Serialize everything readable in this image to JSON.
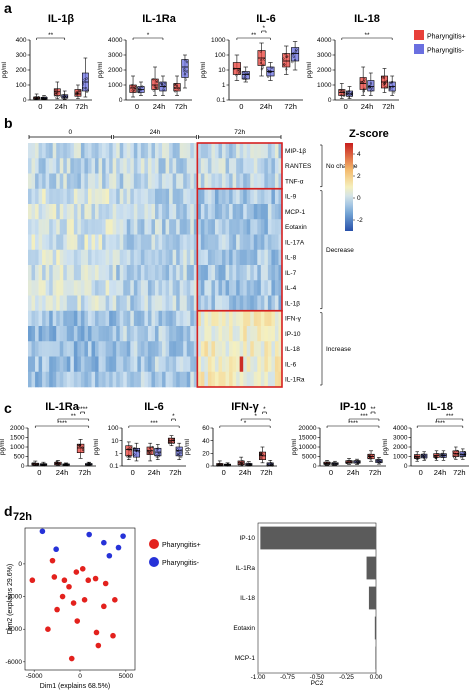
{
  "colors": {
    "pos": "#e8403a",
    "neg": "#6a6fe0",
    "pos_dot": "#e3211d",
    "neg_dot": "#2632d8",
    "highlight": "#d62020",
    "bar_pc": "#5b5b5b"
  },
  "legend": {
    "pos": "Pharyngitis+",
    "neg": "Pharyngitis-"
  },
  "panel_labels": {
    "a": "a",
    "b": "b",
    "c": "c",
    "d": "d"
  },
  "timepoints": [
    "0",
    "24h",
    "72h"
  ],
  "sig": {
    "one": "*",
    "two": "**",
    "three": "***",
    "four": "****"
  },
  "chart_data": [
    {
      "panel": "a",
      "type": "box",
      "title": "IL-1β",
      "ylabel": "pg/ml",
      "ylim": [
        0,
        400
      ],
      "yticks": [
        "0",
        "100",
        "200",
        "300",
        "400"
      ],
      "categories": [
        "0",
        "24h",
        "72h"
      ],
      "series": [
        {
          "name": "Pharyngitis+",
          "boxes": [
            [
              2,
              6,
              12,
              20,
              40
            ],
            [
              8,
              30,
              55,
              75,
              120
            ],
            [
              10,
              25,
              40,
              70,
              100
            ]
          ]
        },
        {
          "name": "Pharyngitis-",
          "boxes": [
            [
              2,
              5,
              10,
              18,
              30
            ],
            [
              5,
              12,
              20,
              35,
              60
            ],
            [
              20,
              60,
              120,
              180,
              280
            ]
          ]
        }
      ],
      "brackets": [
        {
          "from": 0,
          "to": 1,
          "label": "**"
        }
      ]
    },
    {
      "panel": "a",
      "type": "box",
      "title": "IL-1Ra",
      "ylabel": "pg/ml",
      "ylim": [
        0,
        4000
      ],
      "yticks": [
        "0",
        "1000",
        "2000",
        "3000",
        "4000"
      ],
      "categories": [
        "0",
        "24h",
        "72h"
      ],
      "series": [
        {
          "name": "Pharyngitis+",
          "boxes": [
            [
              200,
              500,
              800,
              1000,
              1600
            ],
            [
              300,
              700,
              1000,
              1400,
              2200
            ],
            [
              300,
              600,
              800,
              1100,
              1600
            ]
          ]
        },
        {
          "name": "Pharyngitis-",
          "boxes": [
            [
              300,
              500,
              700,
              900,
              1200
            ],
            [
              300,
              600,
              900,
              1200,
              1600
            ],
            [
              800,
              1500,
              2200,
              2700,
              3000
            ]
          ]
        }
      ],
      "brackets": [
        {
          "from": 0,
          "to": 1,
          "label": "*"
        }
      ]
    },
    {
      "panel": "a",
      "type": "box",
      "title": "IL-6",
      "ylabel": "pg/ml",
      "ylim": [
        -1,
        3
      ],
      "yticks": [
        "0.1",
        "1",
        "10",
        "100",
        "1000"
      ],
      "log": true,
      "categories": [
        "0",
        "24h",
        "72h"
      ],
      "series": [
        {
          "name": "Pharyngitis+",
          "boxes": [
            [
              0.3,
              0.7,
              1.1,
              1.5,
              2.0
            ],
            [
              0.6,
              1.3,
              1.8,
              2.3,
              2.8
            ],
            [
              0.7,
              1.2,
              1.6,
              2.1,
              2.6
            ]
          ]
        },
        {
          "name": "Pharyngitis-",
          "boxes": [
            [
              0.2,
              0.4,
              0.7,
              0.9,
              1.2
            ],
            [
              0.3,
              0.6,
              0.9,
              1.2,
              1.5
            ],
            [
              1.0,
              1.6,
              2.1,
              2.5,
              2.9
            ]
          ]
        }
      ],
      "brackets": [
        {
          "from": 0,
          "to": 1,
          "label": "**"
        },
        {
          "from": 1,
          "to": 1.5,
          "label": "*"
        }
      ]
    },
    {
      "panel": "a",
      "type": "box",
      "title": "IL-18",
      "ylabel": "pg/ml",
      "ylim": [
        0,
        4000
      ],
      "yticks": [
        "0",
        "1000",
        "2000",
        "3000",
        "4000"
      ],
      "categories": [
        "0",
        "24h",
        "72h"
      ],
      "series": [
        {
          "name": "Pharyngitis+",
          "boxes": [
            [
              100,
              300,
              500,
              700,
              1100
            ],
            [
              300,
              700,
              1100,
              1500,
              2200
            ],
            [
              500,
              800,
              1200,
              1600,
              2100
            ]
          ]
        },
        {
          "name": "Pharyngitis-",
          "boxes": [
            [
              100,
              250,
              400,
              600,
              900
            ],
            [
              300,
              600,
              900,
              1300,
              1800
            ],
            [
              300,
              600,
              900,
              1200,
              1600
            ]
          ]
        }
      ],
      "brackets": [
        {
          "from": 0,
          "to": 2,
          "label": "**"
        }
      ]
    },
    {
      "panel": "c",
      "type": "box",
      "title": "IL-1Ra",
      "ylabel": "pg/ml",
      "ylim": [
        0,
        2000
      ],
      "yticks": [
        "0",
        "500",
        "1000",
        "1500",
        "2000"
      ],
      "categories": [
        "0",
        "24h",
        "72h"
      ],
      "series": [
        {
          "name": "Pharyngitis+",
          "boxes": [
            [
              20,
              50,
              100,
              150,
              260
            ],
            [
              30,
              60,
              120,
              200,
              300
            ],
            [
              400,
              700,
              950,
              1150,
              1400
            ]
          ]
        },
        {
          "name": "Pharyngitis-",
          "boxes": [
            [
              20,
              40,
              80,
              120,
              200
            ],
            [
              20,
              40,
              70,
              110,
              160
            ],
            [
              20,
              50,
              90,
              130,
              200
            ]
          ]
        }
      ],
      "brackets": [
        {
          "from": 0,
          "to": 2,
          "label": "****"
        },
        {
          "from": 1,
          "to": 2,
          "label": "**"
        },
        {
          "from": 2,
          "to": 2.5,
          "label": "****"
        }
      ]
    },
    {
      "panel": "c",
      "type": "box",
      "title": "IL-6",
      "ylabel": "pg/ml",
      "ylim": [
        -1,
        2
      ],
      "yticks": [
        "0.1",
        "1",
        "10",
        "100"
      ],
      "log": true,
      "categories": [
        "0",
        "24h",
        "72h"
      ],
      "series": [
        {
          "name": "Pharyngitis+",
          "boxes": [
            [
              -0.5,
              -0.2,
              0.3,
              0.6,
              0.9
            ],
            [
              -0.6,
              -0.1,
              0.2,
              0.5,
              0.8
            ],
            [
              0.6,
              0.8,
              1.0,
              1.2,
              1.4
            ]
          ]
        },
        {
          "name": "Pharyngitis-",
          "boxes": [
            [
              -0.6,
              -0.3,
              0.2,
              0.4,
              0.8
            ],
            [
              -0.5,
              -0.2,
              0.1,
              0.4,
              0.7
            ],
            [
              -0.5,
              -0.2,
              0.2,
              0.5,
              0.8
            ]
          ]
        }
      ],
      "brackets": [
        {
          "from": 0,
          "to": 2,
          "label": "***"
        },
        {
          "from": 2,
          "to": 2.5,
          "label": "*"
        }
      ]
    },
    {
      "panel": "c",
      "type": "box",
      "title": "IFN-γ",
      "ylabel": "pg/ml",
      "ylim": [
        0,
        60
      ],
      "yticks": [
        "0",
        "20",
        "40",
        "60"
      ],
      "categories": [
        "0",
        "24h",
        "72h"
      ],
      "series": [
        {
          "name": "Pharyngitis+",
          "boxes": [
            [
              0,
              1,
              2,
              4,
              8
            ],
            [
              0,
              2,
              5,
              8,
              14
            ],
            [
              5,
              10,
              16,
              22,
              30
            ]
          ]
        },
        {
          "name": "Pharyngitis-",
          "boxes": [
            [
              0,
              1,
              2,
              3,
              5
            ],
            [
              0,
              1,
              2,
              4,
              7
            ],
            [
              0,
              1,
              3,
              5,
              9
            ]
          ]
        }
      ],
      "brackets": [
        {
          "from": 0,
          "to": 2,
          "label": "*"
        },
        {
          "from": 1,
          "to": 2,
          "label": "*"
        },
        {
          "from": 2,
          "to": 2.5,
          "label": "*"
        }
      ]
    },
    {
      "panel": "c",
      "type": "box",
      "title": "IP-10",
      "ylabel": "pg/ml",
      "ylim": [
        0,
        20000
      ],
      "yticks": [
        "0",
        "5000",
        "10000",
        "15000",
        "20000"
      ],
      "categories": [
        "0",
        "24h",
        "72h"
      ],
      "series": [
        {
          "name": "Pharyngitis+",
          "boxes": [
            [
              400,
              900,
              1400,
              2000,
              3000
            ],
            [
              800,
              1500,
              2000,
              2800,
              4000
            ],
            [
              2500,
              3800,
              5000,
              6200,
              8000
            ]
          ]
        },
        {
          "name": "Pharyngitis-",
          "boxes": [
            [
              400,
              800,
              1200,
              1700,
              2500
            ],
            [
              800,
              1500,
              2100,
              2800,
              3600
            ],
            [
              1000,
              1800,
              2600,
              3400,
              4500
            ]
          ]
        }
      ],
      "brackets": [
        {
          "from": 0,
          "to": 2,
          "label": "****"
        },
        {
          "from": 1,
          "to": 2,
          "label": "***"
        },
        {
          "from": 2,
          "to": 2.5,
          "label": "**"
        }
      ]
    },
    {
      "panel": "c",
      "type": "box",
      "title": "IL-18",
      "ylabel": "pg/ml",
      "ylim": [
        0,
        4000
      ],
      "yticks": [
        "0",
        "1000",
        "2000",
        "3000",
        "4000"
      ],
      "categories": [
        "0",
        "24h",
        "72h"
      ],
      "series": [
        {
          "name": "Pharyngitis+",
          "boxes": [
            [
              500,
              800,
              1000,
              1200,
              1500
            ],
            [
              600,
              900,
              1100,
              1300,
              1600
            ],
            [
              700,
              1000,
              1300,
              1600,
              2000
            ]
          ]
        },
        {
          "name": "Pharyngitis-",
          "boxes": [
            [
              600,
              850,
              1050,
              1250,
              1500
            ],
            [
              600,
              900,
              1100,
              1300,
              1600
            ],
            [
              700,
              1000,
              1200,
              1500,
              1800
            ]
          ]
        }
      ],
      "brackets": [
        {
          "from": 0,
          "to": 2,
          "label": "****"
        },
        {
          "from": 1,
          "to": 2,
          "label": "***"
        }
      ]
    },
    {
      "panel": "b",
      "type": "heatmap",
      "columns_per_group": 24,
      "groups": [
        "0",
        "24h",
        "72h"
      ],
      "rows": [
        "MIP-1β",
        "RANTES",
        "TNF-α",
        "IL-9",
        "MCP-1",
        "Eotaxin",
        "IL-17A",
        "IL-8",
        "IL-7",
        "IL-4",
        "IL-1β",
        "IFN-γ",
        "IP-10",
        "IL-18",
        "IL-6",
        "IL-1Ra"
      ],
      "row_groups": [
        {
          "label": "No change",
          "from": 0,
          "to": 2
        },
        {
          "label": "Decrease",
          "from": 3,
          "to": 10
        },
        {
          "label": "Increase",
          "from": 11,
          "to": 15
        }
      ],
      "colorbar": {
        "title": "Z-score",
        "ticks": [
          "4",
          "2",
          "0",
          "-2"
        ],
        "range": [
          -3,
          5
        ]
      }
    },
    {
      "panel": "d",
      "type": "scatter",
      "title": "72h",
      "xlabel": "Dim1 (explains 68.5%)",
      "ylabel": "Dim2 (explains 29.6%)",
      "xlim": [
        -6000,
        6000
      ],
      "ylim": [
        -6500,
        2200
      ],
      "xticks": [
        "-5000",
        "0",
        "5000"
      ],
      "yticks": [
        "-6000",
        "-4000",
        "-2000",
        "0"
      ],
      "series": [
        {
          "name": "Pharyngitis+",
          "points": [
            [
              -5200,
              -1000
            ],
            [
              -3000,
              200
            ],
            [
              -2800,
              -800
            ],
            [
              -1700,
              -1000
            ],
            [
              -1200,
              -1400
            ],
            [
              -400,
              -500
            ],
            [
              300,
              -300
            ],
            [
              900,
              -1000
            ],
            [
              1700,
              -900
            ],
            [
              2800,
              -1200
            ],
            [
              500,
              -2200
            ],
            [
              -700,
              -2400
            ],
            [
              -2500,
              -2800
            ],
            [
              -300,
              -3500
            ],
            [
              2600,
              -2600
            ],
            [
              3800,
              -2200
            ],
            [
              1800,
              -4200
            ],
            [
              -900,
              -5800
            ],
            [
              -3500,
              -4000
            ],
            [
              3600,
              -4400
            ],
            [
              2000,
              -5000
            ],
            [
              -1900,
              -2000
            ]
          ]
        },
        {
          "name": "Pharyngitis-",
          "points": [
            [
              -4100,
              2000
            ],
            [
              -2600,
              900
            ],
            [
              1000,
              1800
            ],
            [
              2600,
              1300
            ],
            [
              3200,
              500
            ],
            [
              4200,
              1000
            ],
            [
              4700,
              1700
            ]
          ]
        }
      ]
    },
    {
      "panel": "d",
      "type": "bar",
      "orientation": "horizontal",
      "categories": [
        "IP-10",
        "IL-1Ra",
        "IL-18",
        "Eotaxin",
        "MCP-1"
      ],
      "values": [
        -0.98,
        -0.08,
        -0.06,
        -0.01,
        -0.005
      ],
      "xlim": [
        -1.0,
        0.0
      ],
      "xticks": [
        "-1.00",
        "-0.75",
        "-0.50",
        "-0.25",
        "0.00"
      ],
      "xlabel": "PC2"
    }
  ]
}
